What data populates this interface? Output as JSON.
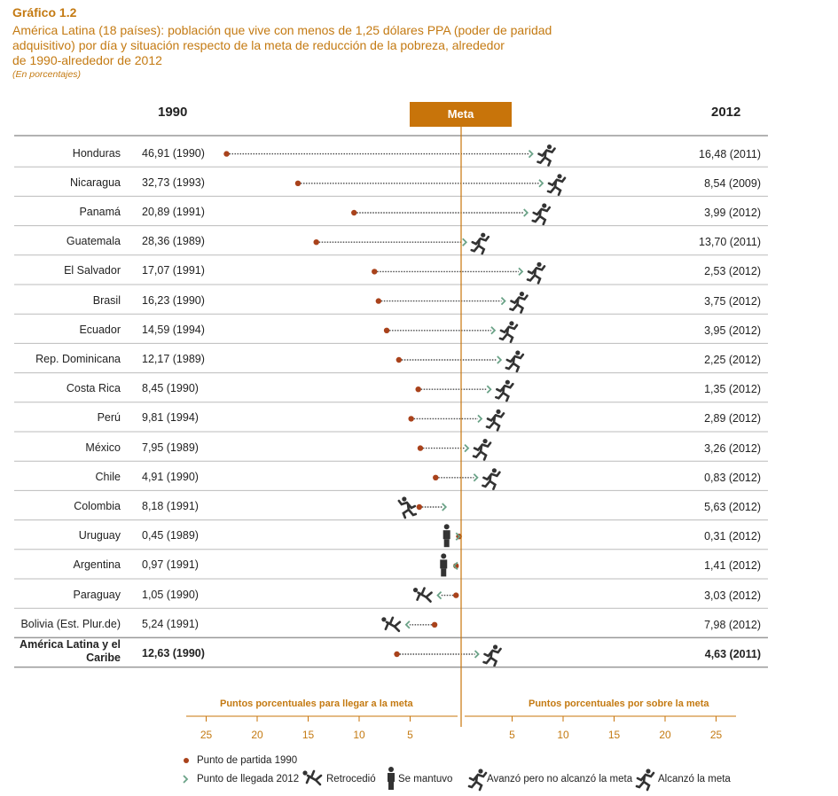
{
  "header": {
    "title": "Gráfico 1.2",
    "subtitle_lines": [
      "América Latina (18 países): población que vive con menos de 1,25 dólares PPA (poder de paridad",
      "adquisitivo) por día y situación respecto de la meta de reducción de la pobreza, alrededor",
      "de 1990-alrededor de 2012"
    ],
    "note": "(En porcentajes)"
  },
  "columns": {
    "left": "1990",
    "right": "2012",
    "meta": "Meta"
  },
  "colors": {
    "accent": "#c8740a",
    "text": "#222222",
    "start_dot": "#a9421b",
    "line": "#4a4a4a",
    "end_arrow": "#6aa287"
  },
  "chart_data": {
    "type": "dot-arrow",
    "xaxis": {
      "left_label": "Puntos porcentuales para llegar a la meta",
      "right_label": "Puntos porcentuales por sobre la meta",
      "left_ticks": [
        "25",
        "20",
        "15",
        "10",
        "5"
      ],
      "right_ticks": [
        "5",
        "10",
        "15",
        "20",
        "25"
      ],
      "range": [
        -27,
        27
      ]
    },
    "rows": [
      {
        "country": "Honduras",
        "v1990": "46,91 (1990)",
        "v2012": "16,48 (2011)",
        "start": -23,
        "end": 7,
        "status": "alcanzo"
      },
      {
        "country": "Nicaragua",
        "v1990": "32,73 (1993)",
        "v2012": "8,54 (2009)",
        "start": -16,
        "end": 8,
        "status": "alcanzo"
      },
      {
        "country": "Panamá",
        "v1990": "20,89 (1991)",
        "v2012": "3,99 (2012)",
        "start": -10.5,
        "end": 6.5,
        "status": "alcanzo"
      },
      {
        "country": "Guatemala",
        "v1990": "28,36 (1989)",
        "v2012": "13,70 (2011)",
        "start": -14.2,
        "end": 0.5,
        "status": "avanzo"
      },
      {
        "country": "El Salvador",
        "v1990": "17,07 (1991)",
        "v2012": "2,53 (2012)",
        "start": -8.5,
        "end": 6,
        "status": "alcanzo"
      },
      {
        "country": "Brasil",
        "v1990": "16,23 (1990)",
        "v2012": "3,75 (2012)",
        "start": -8.1,
        "end": 4.3,
        "status": "alcanzo"
      },
      {
        "country": "Ecuador",
        "v1990": "14,59 (1994)",
        "v2012": "3,95 (2012)",
        "start": -7.3,
        "end": 3.3,
        "status": "alcanzo"
      },
      {
        "country": "Rep. Dominicana",
        "v1990": "12,17 (1989)",
        "v2012": "2,25 (2012)",
        "start": -6.1,
        "end": 3.9,
        "status": "alcanzo"
      },
      {
        "country": "Costa Rica",
        "v1990": "8,45 (1990)",
        "v2012": "1,35 (2012)",
        "start": -4.2,
        "end": 2.9,
        "status": "alcanzo"
      },
      {
        "country": "Perú",
        "v1990": "9,81 (1994)",
        "v2012": "2,89 (2012)",
        "start": -4.9,
        "end": 2,
        "status": "alcanzo"
      },
      {
        "country": "México",
        "v1990": "7,95 (1989)",
        "v2012": "3,26 (2012)",
        "start": -4,
        "end": 0.7,
        "status": "alcanzo"
      },
      {
        "country": "Chile",
        "v1990": "4,91 (1990)",
        "v2012": "0,83 (2012)",
        "start": -2.5,
        "end": 1.6,
        "status": "alcanzo"
      },
      {
        "country": "Colombia",
        "v1990": "8,18 (1991)",
        "v2012": "5,63 (2012)",
        "start": -4.1,
        "end": -1.5,
        "status": "avanzo-no"
      },
      {
        "country": "Uruguay",
        "v1990": "0,45 (1989)",
        "v2012": "0,31 (2012)",
        "start": -0.2,
        "end": -0.15,
        "status": "mantuvo"
      },
      {
        "country": "Argentina",
        "v1990": "0,97 (1991)",
        "v2012": "1,41 (2012)",
        "start": -0.5,
        "end": -0.7,
        "status": "mantuvo"
      },
      {
        "country": "Paraguay",
        "v1990": "1,05 (1990)",
        "v2012": "3,03 (2012)",
        "start": -0.5,
        "end": -2.3,
        "status": "retrocedio"
      },
      {
        "country": "Bolivia (Est. Plur.de)",
        "v1990": "5,24 (1991)",
        "v2012": "7,98 (2012)",
        "start": -2.6,
        "end": -5.4,
        "status": "retrocedio"
      },
      {
        "country": "América Latina y el Caribe",
        "v1990": "12,63 (1990)",
        "v2012": "4,63 (2011)",
        "start": -6.3,
        "end": 1.7,
        "status": "alcanzo",
        "bold": true
      }
    ]
  },
  "legend": {
    "start": "Punto de partida 1990",
    "end": "Punto de llegada 2012",
    "retrocedio": "Retrocedió",
    "mantuvo": "Se mantuvo",
    "avanzo": "Avanzó pero no alcanzó la meta",
    "alcanzo": "Alcanzó la meta"
  }
}
